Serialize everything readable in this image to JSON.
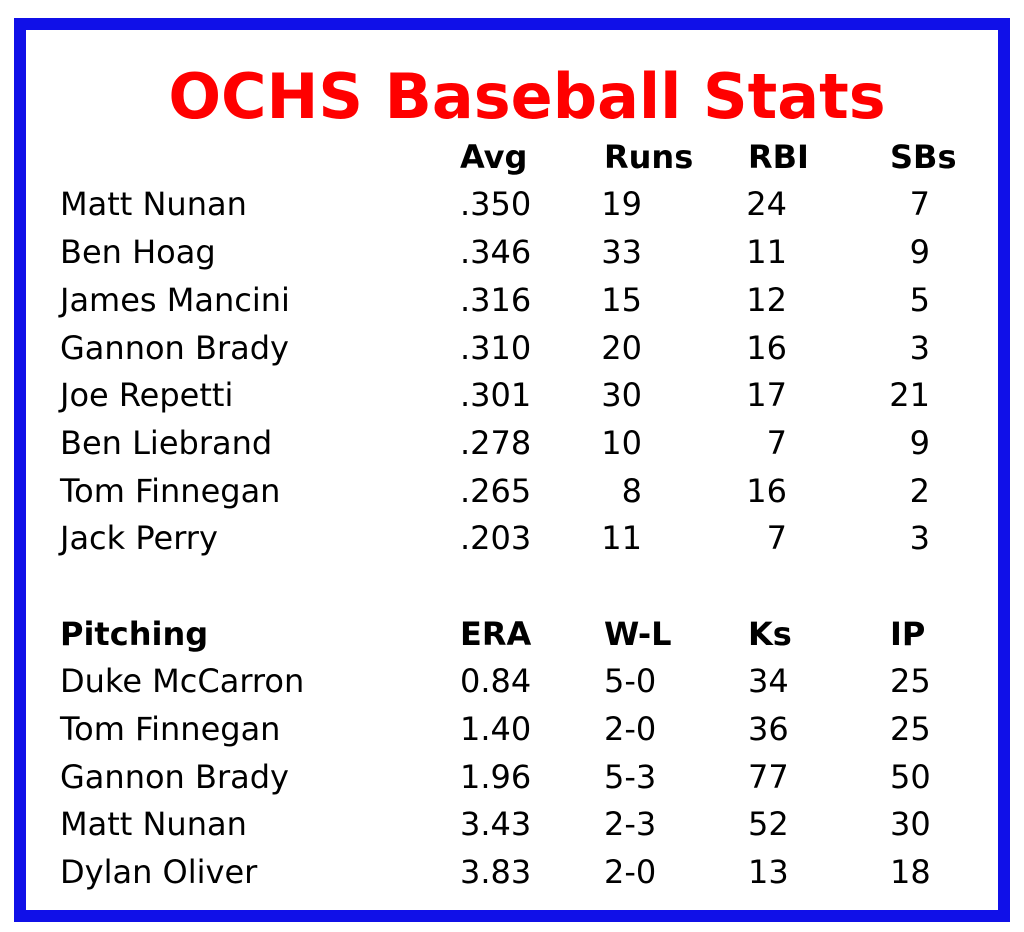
{
  "title": "OCHS Baseball Stats",
  "batting": {
    "headers": [
      "",
      "Avg",
      "Runs",
      "RBI",
      "SBs"
    ],
    "rows": [
      {
        "name": "Matt Nunan",
        "avg": ".350",
        "runs": "19",
        "rbi": "24",
        "sbs": "7"
      },
      {
        "name": "Ben Hoag",
        "avg": ".346",
        "runs": "33",
        "rbi": "11",
        "sbs": "9"
      },
      {
        "name": "James Mancini",
        "avg": ".316",
        "runs": "15",
        "rbi": "12",
        "sbs": "5"
      },
      {
        "name": "Gannon Brady",
        "avg": ".310",
        "runs": "20",
        "rbi": "16",
        "sbs": "3"
      },
      {
        "name": "Joe Repetti",
        "avg": ".301",
        "runs": "30",
        "rbi": "17",
        "sbs": "21"
      },
      {
        "name": "Ben Liebrand",
        "avg": ".278",
        "runs": "10",
        "rbi": "7",
        "sbs": "9"
      },
      {
        "name": "Tom Finnegan",
        "avg": ".265",
        "runs": "8",
        "rbi": "16",
        "sbs": "2"
      },
      {
        "name": "Jack Perry",
        "avg": ".203",
        "runs": "11",
        "rbi": "7",
        "sbs": "3"
      }
    ]
  },
  "pitching": {
    "headers": [
      "Pitching",
      "ERA",
      "W-L",
      "Ks",
      "IP"
    ],
    "rows": [
      {
        "name": "Duke McCarron",
        "era": "0.84",
        "wl": "5-0",
        "ks": "34",
        "ip": "25"
      },
      {
        "name": "Tom Finnegan",
        "era": "1.40",
        "wl": "2-0",
        "ks": "36",
        "ip": "25"
      },
      {
        "name": "Gannon Brady",
        "era": "1.96",
        "wl": "5-3",
        "ks": "77",
        "ip": "50"
      },
      {
        "name": "Matt Nunan",
        "era": "3.43",
        "wl": "2-3",
        "ks": "52",
        "ip": "30"
      },
      {
        "name": "Dylan Oliver",
        "era": "3.83",
        "wl": "2-0",
        "ks": "13",
        "ip": "18"
      }
    ]
  },
  "colors": {
    "border": "#1010e8",
    "title": "#ff0000"
  }
}
